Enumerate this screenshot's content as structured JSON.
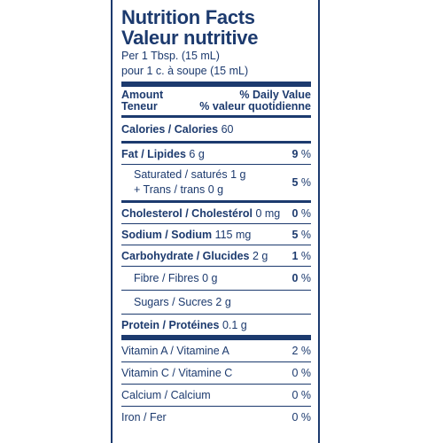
{
  "header": {
    "title_en": "Nutrition Facts",
    "title_fr": "Valeur nutritive",
    "serving_en": "Per 1 Tbsp. (15 mL)",
    "serving_fr": "pour 1 c. à soupe (15 mL)"
  },
  "columns": {
    "amount_en": "Amount",
    "amount_fr": "Teneur",
    "dv_en": "% Daily Value",
    "dv_fr": "% valeur quotidienne"
  },
  "calories": {
    "label": "Calories / Calories",
    "value": "60"
  },
  "nutrients": {
    "fat": {
      "label": "Fat / Lipides",
      "amount": "6 g",
      "dv": "9",
      "unit": "%"
    },
    "saturated": {
      "label": "Saturated / saturés 1 g",
      "label2": "+ Trans / trans 0 g",
      "dv": "5",
      "unit": "%"
    },
    "cholesterol": {
      "label": "Cholesterol / Cholestérol",
      "amount": "0 mg",
      "dv": "0",
      "unit": "%"
    },
    "sodium": {
      "label": "Sodium / Sodium",
      "amount": "115 mg",
      "dv": "5",
      "unit": "%"
    },
    "carbs": {
      "label": "Carbohydrate / Glucides",
      "amount": "2 g",
      "dv": "1",
      "unit": "%"
    },
    "fibre": {
      "label": "Fibre / Fibres 0 g",
      "dv": "0",
      "unit": "%"
    },
    "sugars": {
      "label": "Sugars / Sucres 2 g"
    },
    "protein": {
      "label": "Protein / Protéines",
      "amount": "0.1 g"
    }
  },
  "vitamins": [
    {
      "label": "Vitamin A / Vitamine A",
      "dv": "2 %"
    },
    {
      "label": "Vitamin C / Vitamine C",
      "dv": "0 %"
    },
    {
      "label": "Calcium / Calcium",
      "dv": "0 %"
    },
    {
      "label": "Iron / Fer",
      "dv": "0 %"
    }
  ]
}
